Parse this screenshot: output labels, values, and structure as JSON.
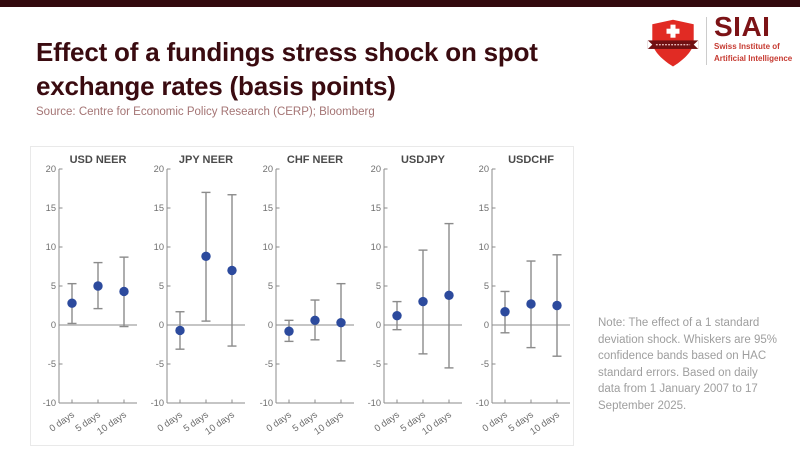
{
  "page": {
    "accent_bar_color": "#330a0e"
  },
  "header": {
    "title_line1": "Effect of a fundings stress shock on spot",
    "title_line2": "exchange rates (basis points)",
    "source": "Source: Centre for Economic Policy Research (CERP); Bloomberg"
  },
  "logo": {
    "name": "SIAI",
    "subtitle_line1": "Swiss Institute of",
    "subtitle_line2": "Artificial Intelligence",
    "shield_color": "#e12b24",
    "ribbon_color": "#701012",
    "text_color": "#7c1316"
  },
  "note": {
    "text": "Note: The effect of a 1 standard deviation shock. Whiskers are 95% confidence bands based on HAC standard errors. Based on daily data from 1 January 2007 to 17 September 2025."
  },
  "chart_data": {
    "type": "scatter",
    "subtype": "point-estimates-with-95pct-confidence-whiskers",
    "categories": [
      "0 days",
      "5 days",
      "10 days"
    ],
    "xlabel": "",
    "ylabel": "",
    "ylim": [
      -10,
      20
    ],
    "yticks": [
      20,
      15,
      10,
      5,
      0,
      -5,
      -10
    ],
    "grid": false,
    "zero_line": true,
    "marker_color": "#2c4a9d",
    "whisker_color": "#8b8b8b",
    "axis_color": "#8b8b8b",
    "tick_label_color": "#6f6f6f",
    "panel_title_color": "#4a4a4a",
    "panels": [
      {
        "title": "USD NEER",
        "values": [
          2.8,
          5.0,
          4.3
        ],
        "ci_low": [
          0.2,
          2.1,
          -0.2
        ],
        "ci_high": [
          5.3,
          8.0,
          8.7
        ]
      },
      {
        "title": "JPY NEER",
        "values": [
          -0.7,
          8.8,
          7.0
        ],
        "ci_low": [
          -3.1,
          0.5,
          -2.7
        ],
        "ci_high": [
          1.7,
          17.0,
          16.7
        ]
      },
      {
        "title": "CHF NEER",
        "values": [
          -0.8,
          0.6,
          0.3
        ],
        "ci_low": [
          -2.1,
          -1.9,
          -4.6
        ],
        "ci_high": [
          0.6,
          3.2,
          5.3
        ]
      },
      {
        "title": "USDJPY",
        "values": [
          1.2,
          3.0,
          3.8
        ],
        "ci_low": [
          -0.6,
          -3.7,
          -5.5
        ],
        "ci_high": [
          3.0,
          9.6,
          13.0
        ]
      },
      {
        "title": "USDCHF",
        "values": [
          1.7,
          2.7,
          2.5
        ],
        "ci_low": [
          -1.0,
          -2.9,
          -4.0
        ],
        "ci_high": [
          4.3,
          8.2,
          9.0
        ]
      }
    ]
  }
}
